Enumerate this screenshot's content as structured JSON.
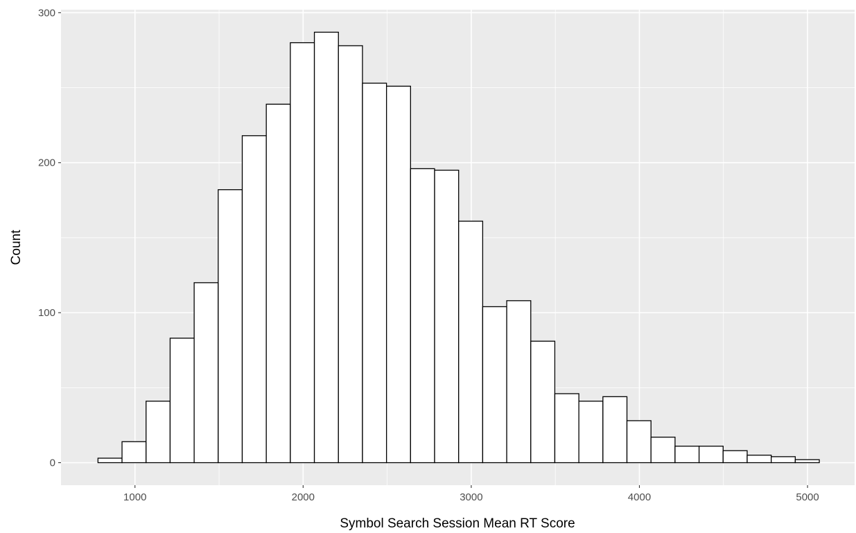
{
  "chart_data": {
    "type": "bar",
    "subtype": "histogram",
    "title": "",
    "xlabel": "Symbol Search Session Mean RT Score",
    "ylabel": "Count",
    "xlim": [
      560,
      5280
    ],
    "ylim": [
      -15,
      302
    ],
    "x_ticks": [
      1000,
      2000,
      3000,
      4000,
      5000
    ],
    "y_ticks": [
      0,
      100,
      200,
      300
    ],
    "x_minor_ticks": [
      1500,
      2500,
      3500,
      4500
    ],
    "y_minor_ticks": [
      50,
      150,
      250
    ],
    "bin_width": 143,
    "bins": [
      {
        "x0": 780,
        "x1": 923,
        "count": 3
      },
      {
        "x0": 923,
        "x1": 1066,
        "count": 14
      },
      {
        "x0": 1066,
        "x1": 1209,
        "count": 41
      },
      {
        "x0": 1209,
        "x1": 1352,
        "count": 83
      },
      {
        "x0": 1352,
        "x1": 1495,
        "count": 120
      },
      {
        "x0": 1495,
        "x1": 1638,
        "count": 182
      },
      {
        "x0": 1638,
        "x1": 1781,
        "count": 218
      },
      {
        "x0": 1781,
        "x1": 1924,
        "count": 239
      },
      {
        "x0": 1924,
        "x1": 2067,
        "count": 280
      },
      {
        "x0": 2067,
        "x1": 2210,
        "count": 287
      },
      {
        "x0": 2210,
        "x1": 2353,
        "count": 278
      },
      {
        "x0": 2353,
        "x1": 2496,
        "count": 253
      },
      {
        "x0": 2496,
        "x1": 2639,
        "count": 251
      },
      {
        "x0": 2639,
        "x1": 2782,
        "count": 196
      },
      {
        "x0": 2782,
        "x1": 2925,
        "count": 195
      },
      {
        "x0": 2925,
        "x1": 3068,
        "count": 161
      },
      {
        "x0": 3068,
        "x1": 3211,
        "count": 104
      },
      {
        "x0": 3211,
        "x1": 3354,
        "count": 108
      },
      {
        "x0": 3354,
        "x1": 3497,
        "count": 81
      },
      {
        "x0": 3497,
        "x1": 3640,
        "count": 46
      },
      {
        "x0": 3640,
        "x1": 3783,
        "count": 41
      },
      {
        "x0": 3783,
        "x1": 3926,
        "count": 44
      },
      {
        "x0": 3926,
        "x1": 4069,
        "count": 28
      },
      {
        "x0": 4069,
        "x1": 4212,
        "count": 17
      },
      {
        "x0": 4212,
        "x1": 4355,
        "count": 11
      },
      {
        "x0": 4355,
        "x1": 4498,
        "count": 11
      },
      {
        "x0": 4498,
        "x1": 4641,
        "count": 8
      },
      {
        "x0": 4641,
        "x1": 4784,
        "count": 5
      },
      {
        "x0": 4784,
        "x1": 4927,
        "count": 4
      },
      {
        "x0": 4927,
        "x1": 5070,
        "count": 2
      }
    ],
    "grid": true,
    "legend": "none",
    "colors": {
      "panel_background": "#ebebeb",
      "grid_line": "#ffffff",
      "bar_fill": "#ffffff",
      "bar_outline": "#000000",
      "tick_label": "#4d4d4d",
      "axis_title": "#000000"
    }
  }
}
